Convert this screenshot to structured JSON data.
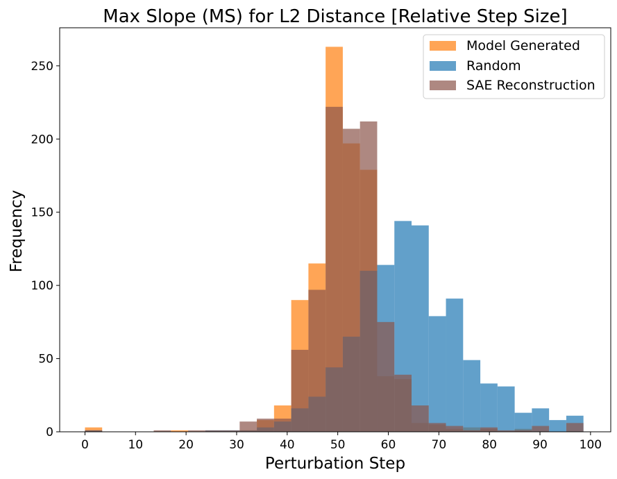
{
  "chart_data": {
    "type": "histogram",
    "title": "Max Slope (MS) for L2 Distance [Relative Step Size]",
    "xlabel": "Perturbation Step",
    "ylabel": "Frequency",
    "xlim": [
      -5,
      104
    ],
    "ylim": [
      0,
      276
    ],
    "x_ticks": [
      0,
      10,
      20,
      30,
      40,
      50,
      60,
      70,
      80,
      90,
      100
    ],
    "y_ticks": [
      0,
      50,
      100,
      150,
      200,
      250
    ],
    "legend_position": "top-right",
    "bin_edges": [
      0,
      3.4,
      6.8,
      10.2,
      13.6,
      17,
      20.4,
      23.8,
      27.2,
      30.6,
      34,
      37.4,
      40.8,
      44.2,
      47.6,
      51,
      54.4,
      57.8,
      61.2,
      64.6,
      68,
      71.4,
      74.8,
      78.2,
      81.6,
      85,
      88.4,
      91.8,
      95.2,
      98.6
    ],
    "series": [
      {
        "name": "Model Generated",
        "color": "#ff7f0e",
        "opacity": 0.7,
        "values": [
          3,
          0,
          0,
          0,
          0,
          1,
          0,
          0,
          0,
          1,
          8,
          18,
          90,
          115,
          263,
          197,
          179,
          38,
          36,
          6,
          5,
          2,
          3,
          2,
          0,
          2,
          0,
          0,
          0
        ]
      },
      {
        "name": "Random",
        "color": "#1f77b4",
        "opacity": 0.7,
        "values": [
          1,
          0,
          0,
          0,
          0,
          0,
          0,
          1,
          1,
          1,
          3,
          7,
          16,
          24,
          44,
          65,
          110,
          114,
          144,
          141,
          79,
          91,
          49,
          33,
          31,
          13,
          16,
          8,
          11
        ]
      },
      {
        "name": "SAE Reconstruction",
        "color": "#8c564b",
        "opacity": 0.7,
        "values": [
          1,
          0,
          0,
          0,
          1,
          0,
          1,
          1,
          1,
          7,
          9,
          9,
          56,
          97,
          222,
          207,
          212,
          75,
          39,
          18,
          6,
          4,
          1,
          3,
          1,
          1,
          4,
          0,
          6
        ]
      }
    ]
  }
}
